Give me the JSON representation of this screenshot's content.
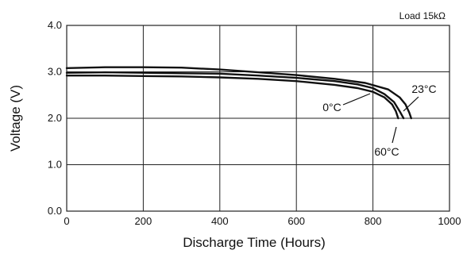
{
  "chart_data": {
    "type": "line",
    "xlabel": "Discharge Time (Hours)",
    "ylabel": "Voltage (V)",
    "load_label": "Load 15kΩ",
    "xlim": [
      0,
      1000
    ],
    "ylim": [
      0.0,
      4.0
    ],
    "x_ticks": [
      "0",
      "200",
      "400",
      "600",
      "800",
      "1000"
    ],
    "y_ticks": [
      "0.0",
      "1.0",
      "2.0",
      "3.0",
      "4.0"
    ],
    "grid": true,
    "series": [
      {
        "name": "23°C",
        "x": [
          0,
          100,
          200,
          300,
          400,
          500,
          600,
          700,
          780,
          840,
          870,
          885,
          895,
          900
        ],
        "y": [
          3.08,
          3.1,
          3.1,
          3.09,
          3.05,
          2.99,
          2.93,
          2.85,
          2.76,
          2.62,
          2.45,
          2.3,
          2.12,
          2.0
        ]
      },
      {
        "name": "0°C",
        "x": [
          0,
          100,
          200,
          300,
          400,
          500,
          600,
          700,
          760,
          800,
          830,
          855,
          870,
          880
        ],
        "y": [
          2.98,
          2.99,
          2.98,
          2.97,
          2.96,
          2.92,
          2.87,
          2.8,
          2.73,
          2.65,
          2.52,
          2.35,
          2.15,
          2.0
        ]
      },
      {
        "name": "60°C",
        "x": [
          0,
          100,
          200,
          300,
          400,
          500,
          600,
          700,
          760,
          800,
          830,
          850,
          860,
          866
        ],
        "y": [
          2.92,
          2.92,
          2.91,
          2.9,
          2.88,
          2.85,
          2.8,
          2.72,
          2.65,
          2.57,
          2.45,
          2.3,
          2.15,
          2.0
        ]
      }
    ],
    "annotations": [
      {
        "label": "23°C",
        "series": "23°C"
      },
      {
        "label": "0°C",
        "series": "0°C"
      },
      {
        "label": "60°C",
        "series": "60°C"
      }
    ],
    "colors": {
      "line": "#111111",
      "grid": "#222222",
      "background": "#ffffff"
    }
  }
}
